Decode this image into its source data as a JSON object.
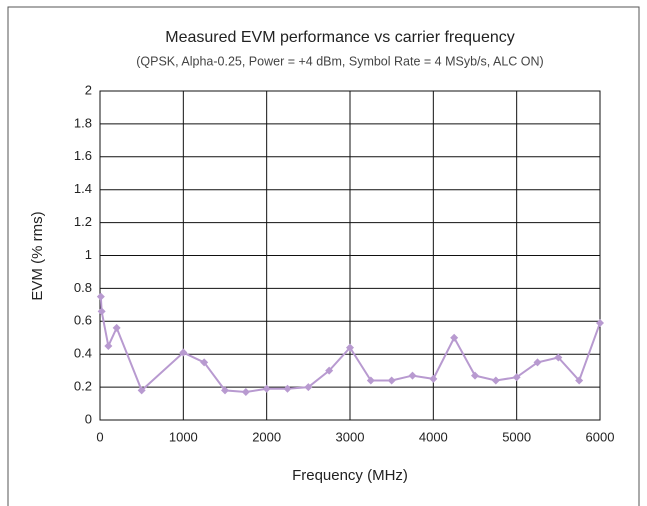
{
  "chart_data": {
    "type": "line",
    "title": "Measured EVM performance vs carrier frequency",
    "subtitle": "(QPSK, Alpha-0.25, Power = +4 dBm, Symbol Rate = 4 MSyb/s, ALC ON)",
    "xlabel": "Frequency (MHz)",
    "ylabel": "EVM (% rms)",
    "x": [
      10,
      20,
      100,
      200,
      500,
      1000,
      1250,
      1500,
      1750,
      2000,
      2250,
      2500,
      2750,
      3000,
      3250,
      3500,
      3750,
      4000,
      4250,
      4500,
      4750,
      5000,
      5250,
      5500,
      5750,
      6000
    ],
    "values": [
      0.75,
      0.66,
      0.45,
      0.56,
      0.18,
      0.41,
      0.35,
      0.18,
      0.17,
      0.19,
      0.19,
      0.2,
      0.3,
      0.44,
      0.24,
      0.24,
      0.27,
      0.25,
      0.5,
      0.27,
      0.24,
      0.26,
      0.35,
      0.38,
      0.24,
      0.59
    ],
    "color": "#b89ad0",
    "xlim": [
      0,
      6000
    ],
    "xticks": [
      0,
      1000,
      2000,
      3000,
      4000,
      5000,
      6000
    ],
    "ylim": [
      0,
      2
    ],
    "yticks": [
      0,
      0.2,
      0.4,
      0.6,
      0.8,
      1,
      1.2,
      1.4,
      1.6,
      1.8,
      2
    ],
    "grid": true
  }
}
